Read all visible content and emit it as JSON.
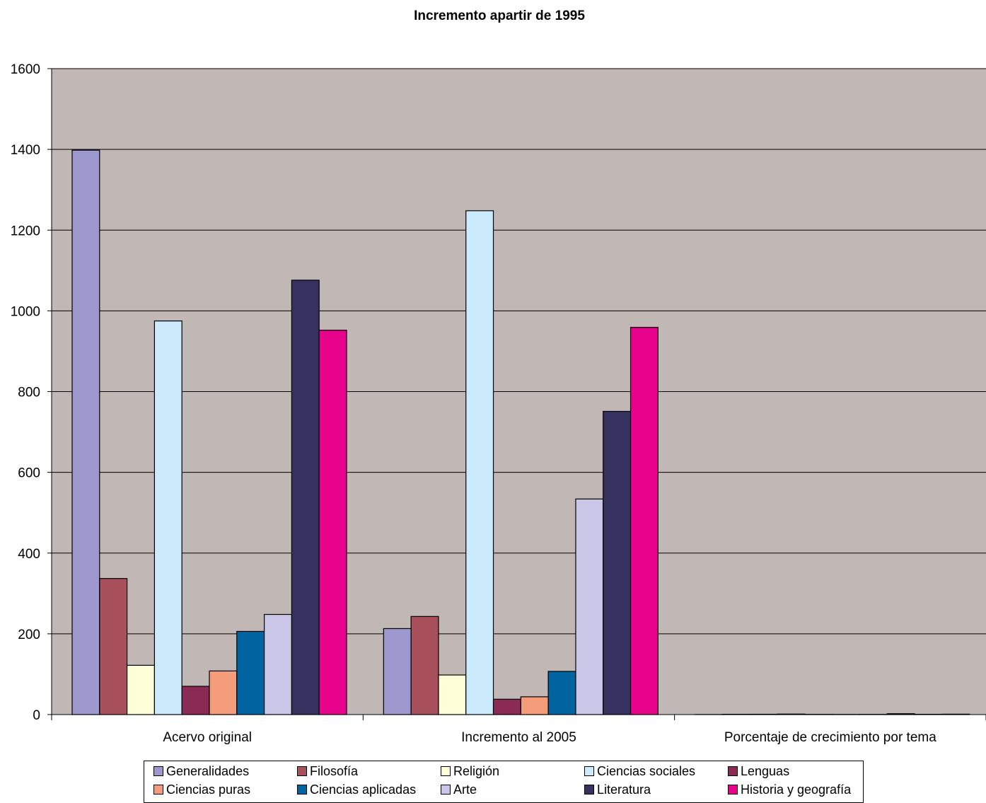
{
  "chart_data": {
    "type": "bar",
    "title": "Incremento apartir de 1995",
    "xlabel": "",
    "ylabel": "",
    "ylim": [
      0,
      1600
    ],
    "yticks": [
      0,
      200,
      400,
      600,
      800,
      1000,
      1200,
      1400,
      1600
    ],
    "grid": true,
    "legend_position": "bottom",
    "plot_background": "#c1b8b6",
    "categories": [
      "Acervo original",
      "Incremento al 2005",
      "Porcentaje de crecimiento por tema"
    ],
    "series": [
      {
        "name": "Generalidades",
        "color": "#9d99ce",
        "values": [
          1398,
          213,
          0.15
        ]
      },
      {
        "name": "Filosofía",
        "color": "#a8505c",
        "values": [
          337,
          243,
          0.72
        ]
      },
      {
        "name": "Religión",
        "color": "#fefed9",
        "values": [
          122,
          98,
          0.8
        ]
      },
      {
        "name": "Ciencias sociales",
        "color": "#cbeafb",
        "values": [
          975,
          1248,
          1.28
        ]
      },
      {
        "name": "Lenguas",
        "color": "#8a2a55",
        "values": [
          70,
          38,
          0.54
        ]
      },
      {
        "name": "Ciencias puras",
        "color": "#f59c7a",
        "values": [
          108,
          44,
          0.4
        ]
      },
      {
        "name": "Ciencias aplicadas",
        "color": "#0164a0",
        "values": [
          206,
          107,
          0.52
        ]
      },
      {
        "name": "Arte",
        "color": "#c9c6e8",
        "values": [
          248,
          534,
          2.15
        ]
      },
      {
        "name": "Literatura",
        "color": "#35325f",
        "values": [
          1076,
          751,
          0.7
        ]
      },
      {
        "name": "Historia y geografía",
        "color": "#e8038c",
        "values": [
          952,
          959,
          1.01
        ]
      }
    ]
  }
}
